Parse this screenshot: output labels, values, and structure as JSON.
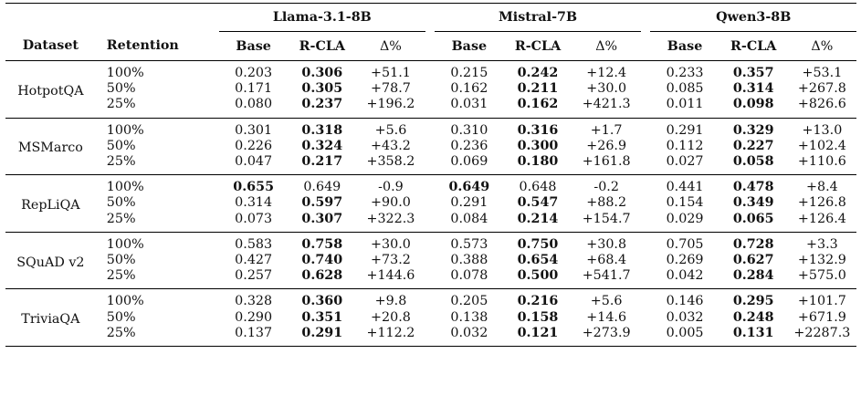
{
  "models": [
    "Llama-3.1-8B",
    "Mistral-7B",
    "Qwen3-8B"
  ],
  "columns": {
    "dataset": "Dataset",
    "retention": "Retention",
    "sub": [
      "Base",
      "R-CLA",
      "Δ%"
    ]
  },
  "groups": [
    {
      "dataset": "HotpotQA",
      "rows": [
        {
          "retention": "100%",
          "vals": [
            "0.203",
            "0.306",
            "+51.1",
            "0.215",
            "0.242",
            "+12.4",
            "0.233",
            "0.357",
            "+53.1"
          ],
          "bold": [
            1,
            4,
            7
          ]
        },
        {
          "retention": "50%",
          "vals": [
            "0.171",
            "0.305",
            "+78.7",
            "0.162",
            "0.211",
            "+30.0",
            "0.085",
            "0.314",
            "+267.8"
          ],
          "bold": [
            1,
            4,
            7
          ]
        },
        {
          "retention": "25%",
          "vals": [
            "0.080",
            "0.237",
            "+196.2",
            "0.031",
            "0.162",
            "+421.3",
            "0.011",
            "0.098",
            "+826.6"
          ],
          "bold": [
            1,
            4,
            7
          ]
        }
      ]
    },
    {
      "dataset": "MSMarco",
      "rows": [
        {
          "retention": "100%",
          "vals": [
            "0.301",
            "0.318",
            "+5.6",
            "0.310",
            "0.316",
            "+1.7",
            "0.291",
            "0.329",
            "+13.0"
          ],
          "bold": [
            1,
            4,
            7
          ]
        },
        {
          "retention": "50%",
          "vals": [
            "0.226",
            "0.324",
            "+43.2",
            "0.236",
            "0.300",
            "+26.9",
            "0.112",
            "0.227",
            "+102.4"
          ],
          "bold": [
            1,
            4,
            7
          ]
        },
        {
          "retention": "25%",
          "vals": [
            "0.047",
            "0.217",
            "+358.2",
            "0.069",
            "0.180",
            "+161.8",
            "0.027",
            "0.058",
            "+110.6"
          ],
          "bold": [
            1,
            4,
            7
          ]
        }
      ]
    },
    {
      "dataset": "RepLiQA",
      "rows": [
        {
          "retention": "100%",
          "vals": [
            "0.655",
            "0.649",
            "-0.9",
            "0.649",
            "0.648",
            "-0.2",
            "0.441",
            "0.478",
            "+8.4"
          ],
          "bold": [
            0,
            3,
            7
          ]
        },
        {
          "retention": "50%",
          "vals": [
            "0.314",
            "0.597",
            "+90.0",
            "0.291",
            "0.547",
            "+88.2",
            "0.154",
            "0.349",
            "+126.8"
          ],
          "bold": [
            1,
            4,
            7
          ]
        },
        {
          "retention": "25%",
          "vals": [
            "0.073",
            "0.307",
            "+322.3",
            "0.084",
            "0.214",
            "+154.7",
            "0.029",
            "0.065",
            "+126.4"
          ],
          "bold": [
            1,
            4,
            7
          ]
        }
      ]
    },
    {
      "dataset": "SQuAD v2",
      "rows": [
        {
          "retention": "100%",
          "vals": [
            "0.583",
            "0.758",
            "+30.0",
            "0.573",
            "0.750",
            "+30.8",
            "0.705",
            "0.728",
            "+3.3"
          ],
          "bold": [
            1,
            4,
            7
          ]
        },
        {
          "retention": "50%",
          "vals": [
            "0.427",
            "0.740",
            "+73.2",
            "0.388",
            "0.654",
            "+68.4",
            "0.269",
            "0.627",
            "+132.9"
          ],
          "bold": [
            1,
            4,
            7
          ]
        },
        {
          "retention": "25%",
          "vals": [
            "0.257",
            "0.628",
            "+144.6",
            "0.078",
            "0.500",
            "+541.7",
            "0.042",
            "0.284",
            "+575.0"
          ],
          "bold": [
            1,
            4,
            7
          ]
        }
      ]
    },
    {
      "dataset": "TriviaQA",
      "rows": [
        {
          "retention": "100%",
          "vals": [
            "0.328",
            "0.360",
            "+9.8",
            "0.205",
            "0.216",
            "+5.6",
            "0.146",
            "0.295",
            "+101.7"
          ],
          "bold": [
            1,
            4,
            7
          ]
        },
        {
          "retention": "50%",
          "vals": [
            "0.290",
            "0.351",
            "+20.8",
            "0.138",
            "0.158",
            "+14.6",
            "0.032",
            "0.248",
            "+671.9"
          ],
          "bold": [
            1,
            4,
            7
          ]
        },
        {
          "retention": "25%",
          "vals": [
            "0.137",
            "0.291",
            "+112.2",
            "0.032",
            "0.121",
            "+273.9",
            "0.005",
            "0.131",
            "+2287.3"
          ],
          "bold": [
            1,
            4,
            7
          ]
        }
      ]
    }
  ]
}
